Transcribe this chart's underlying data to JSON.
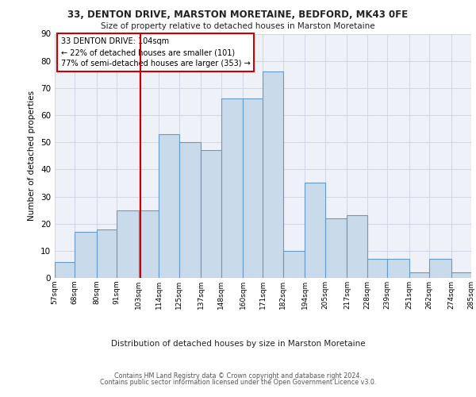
{
  "title1": "33, DENTON DRIVE, MARSTON MORETAINE, BEDFORD, MK43 0FE",
  "title2": "Size of property relative to detached houses in Marston Moretaine",
  "xlabel": "Distribution of detached houses by size in Marston Moretaine",
  "ylabel": "Number of detached properties",
  "footer1": "Contains HM Land Registry data © Crown copyright and database right 2024.",
  "footer2": "Contains public sector information licensed under the Open Government Licence v3.0.",
  "annotation_line1": "33 DENTON DRIVE: 104sqm",
  "annotation_line2": "← 22% of detached houses are smaller (101)",
  "annotation_line3": "77% of semi-detached houses are larger (353) →",
  "subject_value": 104,
  "bin_edges": [
    57,
    68,
    80,
    91,
    103,
    114,
    125,
    137,
    148,
    160,
    171,
    182,
    194,
    205,
    217,
    228,
    239,
    251,
    262,
    274,
    285
  ],
  "bin_labels": [
    "57sqm",
    "68sqm",
    "80sqm",
    "91sqm",
    "103sqm",
    "114sqm",
    "125sqm",
    "137sqm",
    "148sqm",
    "160sqm",
    "171sqm",
    "182sqm",
    "194sqm",
    "205sqm",
    "217sqm",
    "228sqm",
    "239sqm",
    "251sqm",
    "262sqm",
    "274sqm",
    "285sqm"
  ],
  "bar_heights": [
    6,
    17,
    18,
    25,
    25,
    53,
    50,
    47,
    66,
    66,
    76,
    10,
    35,
    22,
    23,
    7,
    7,
    2,
    7,
    2
  ],
  "bar_color": "#c9daea",
  "bar_edge_color": "#6699cc",
  "grid_color": "#d0d8e8",
  "bg_color": "#eef2f8",
  "vline_color": "#cc0000",
  "annotation_box_color": "#cc0000",
  "ylim": [
    0,
    90
  ],
  "yticks": [
    0,
    10,
    20,
    30,
    40,
    50,
    60,
    70,
    80,
    90
  ]
}
